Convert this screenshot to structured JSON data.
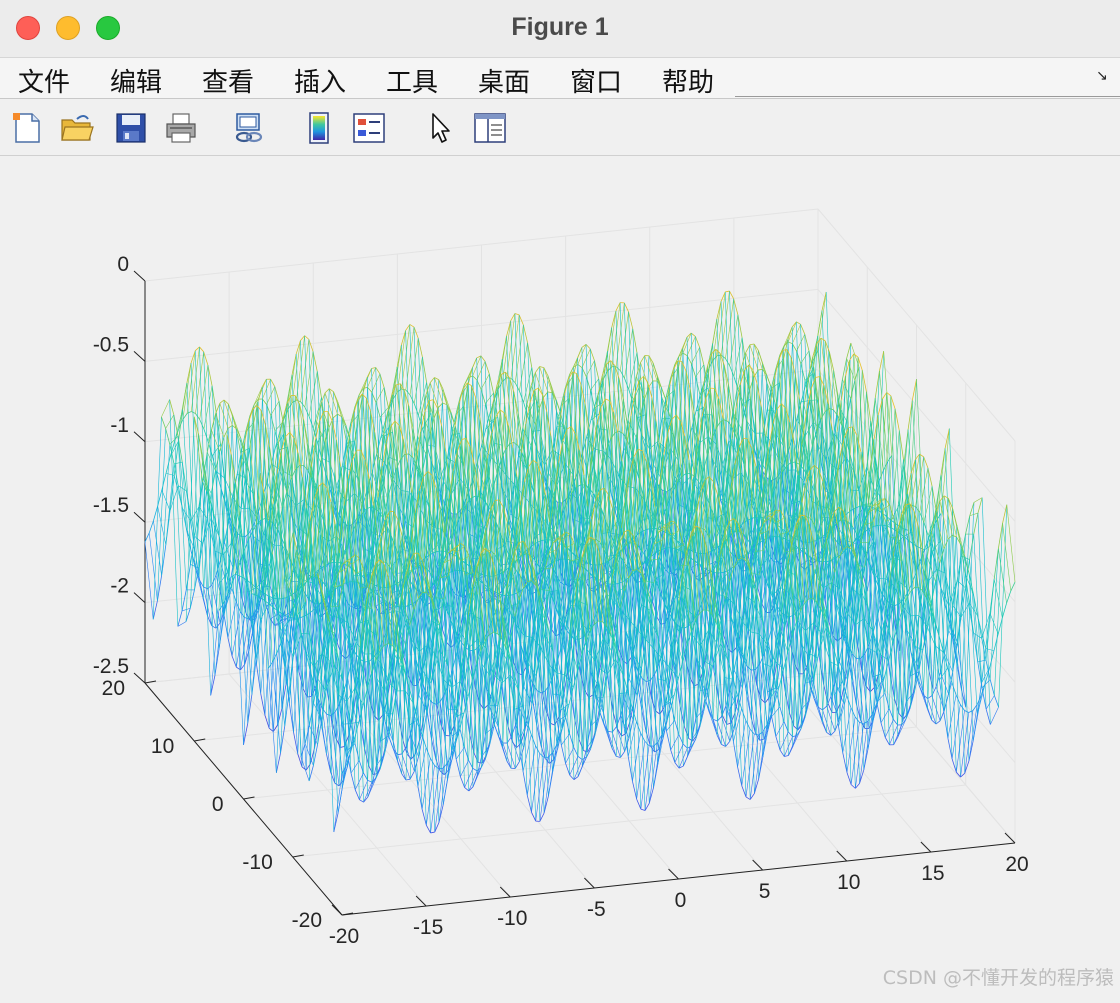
{
  "window": {
    "title": "Figure 1"
  },
  "menu": {
    "items": [
      "文件",
      "编辑",
      "查看",
      "插入",
      "工具",
      "桌面",
      "窗口",
      "帮助"
    ]
  },
  "toolbar": {
    "icons": [
      "new-figure-icon",
      "open-file-icon",
      "save-icon",
      "print-icon",
      "link-icon",
      "colorbar-icon",
      "legend-icon",
      "edit-plot-icon",
      "property-inspector-icon"
    ]
  },
  "chart_data": {
    "type": "surface-mesh",
    "x_ticks": [
      "-20",
      "-15",
      "-10",
      "-5",
      "0",
      "5",
      "10",
      "15",
      "20"
    ],
    "y_ticks": [
      "-20",
      "-10",
      "0",
      "10",
      "20"
    ],
    "z_ticks": [
      "0",
      "-0.5",
      "-1",
      "-1.5",
      "-2",
      "-2.5"
    ],
    "xlim": [
      -20,
      20
    ],
    "ylim": [
      -20,
      20
    ],
    "zlim": [
      -2.5,
      0
    ],
    "grid": true,
    "colormap": "parula"
  },
  "watermark": "CSDN @不懂开发的程序猿"
}
